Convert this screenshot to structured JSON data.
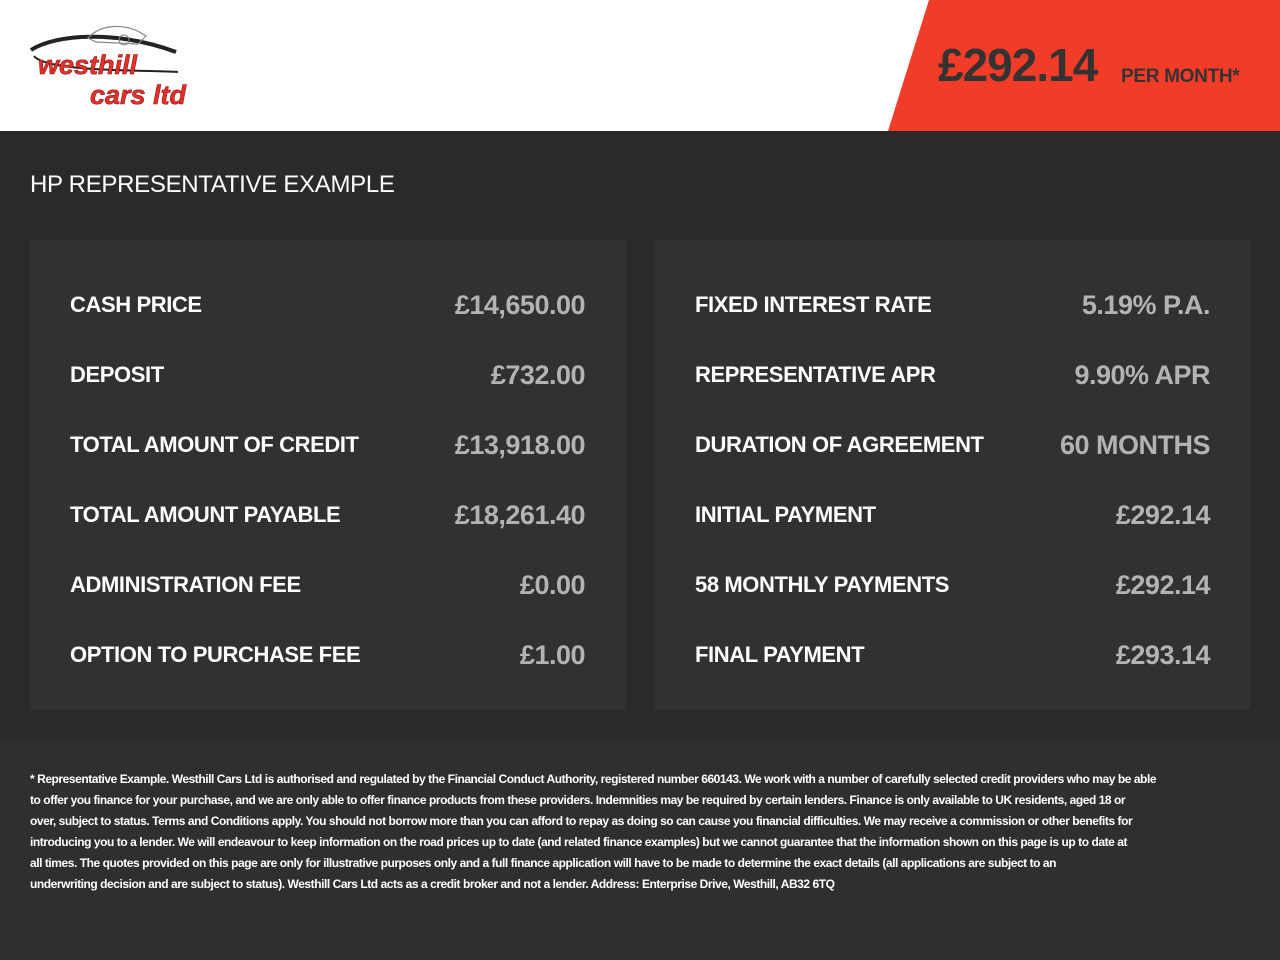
{
  "brand": {
    "logo_text_line1": "westhill",
    "logo_text_line2": "cars ltd",
    "accent": "#f33c28"
  },
  "header": {
    "price": "£292.14",
    "per_month": "PER MONTH*"
  },
  "section_title": "HP REPRESENTATIVE EXAMPLE",
  "left_card": [
    {
      "label": "CASH PRICE",
      "value": "£14,650.00"
    },
    {
      "label": "DEPOSIT",
      "value": "£732.00"
    },
    {
      "label": "TOTAL AMOUNT OF CREDIT",
      "value": "£13,918.00"
    },
    {
      "label": "TOTAL AMOUNT PAYABLE",
      "value": "£18,261.40"
    },
    {
      "label": "ADMINISTRATION FEE",
      "value": "£0.00"
    },
    {
      "label": "OPTION TO PURCHASE FEE",
      "value": "£1.00"
    }
  ],
  "right_card": [
    {
      "label": "FIXED INTEREST RATE",
      "value": "5.19% P.A."
    },
    {
      "label": "REPRESENTATIVE APR",
      "value": "9.90% APR"
    },
    {
      "label": "DURATION OF AGREEMENT",
      "value": "60 MONTHS"
    },
    {
      "label": "INITIAL PAYMENT",
      "value": "£292.14"
    },
    {
      "label": "58 MONTHLY PAYMENTS",
      "value": "£292.14"
    },
    {
      "label": "FINAL PAYMENT",
      "value": "£293.14"
    }
  ],
  "disclaimer_lines": [
    "* Representative Example. Westhill Cars Ltd is authorised and regulated by the Financial Conduct Authority, registered number 660143. We work with a number of carefully selected credit providers who may be able",
    "to offer you finance for your purchase, and we are only able to offer finance products from these providers. Indemnities may be required by certain lenders. Finance is only available to UK residents, aged 18 or",
    "over, subject to status. Terms and Conditions apply. You should not borrow more than you can afford to repay as doing so can cause you financial difficulties. We may receive a commission or other benefits for",
    "introducing you to a lender. We will endeavour to keep information on the road prices up to date (and related finance examples) but we cannot guarantee that the information shown on this page is up to date at",
    "all times. The quotes provided on this page are only for illustrative purposes only and a full finance application will have to be made to determine the exact details (all applications are subject to an",
    "underwriting decision and are subject to status). Westhill Cars Ltd acts as a credit broker and not a lender. Address: Enterprise Drive, Westhill, AB32 6TQ"
  ]
}
